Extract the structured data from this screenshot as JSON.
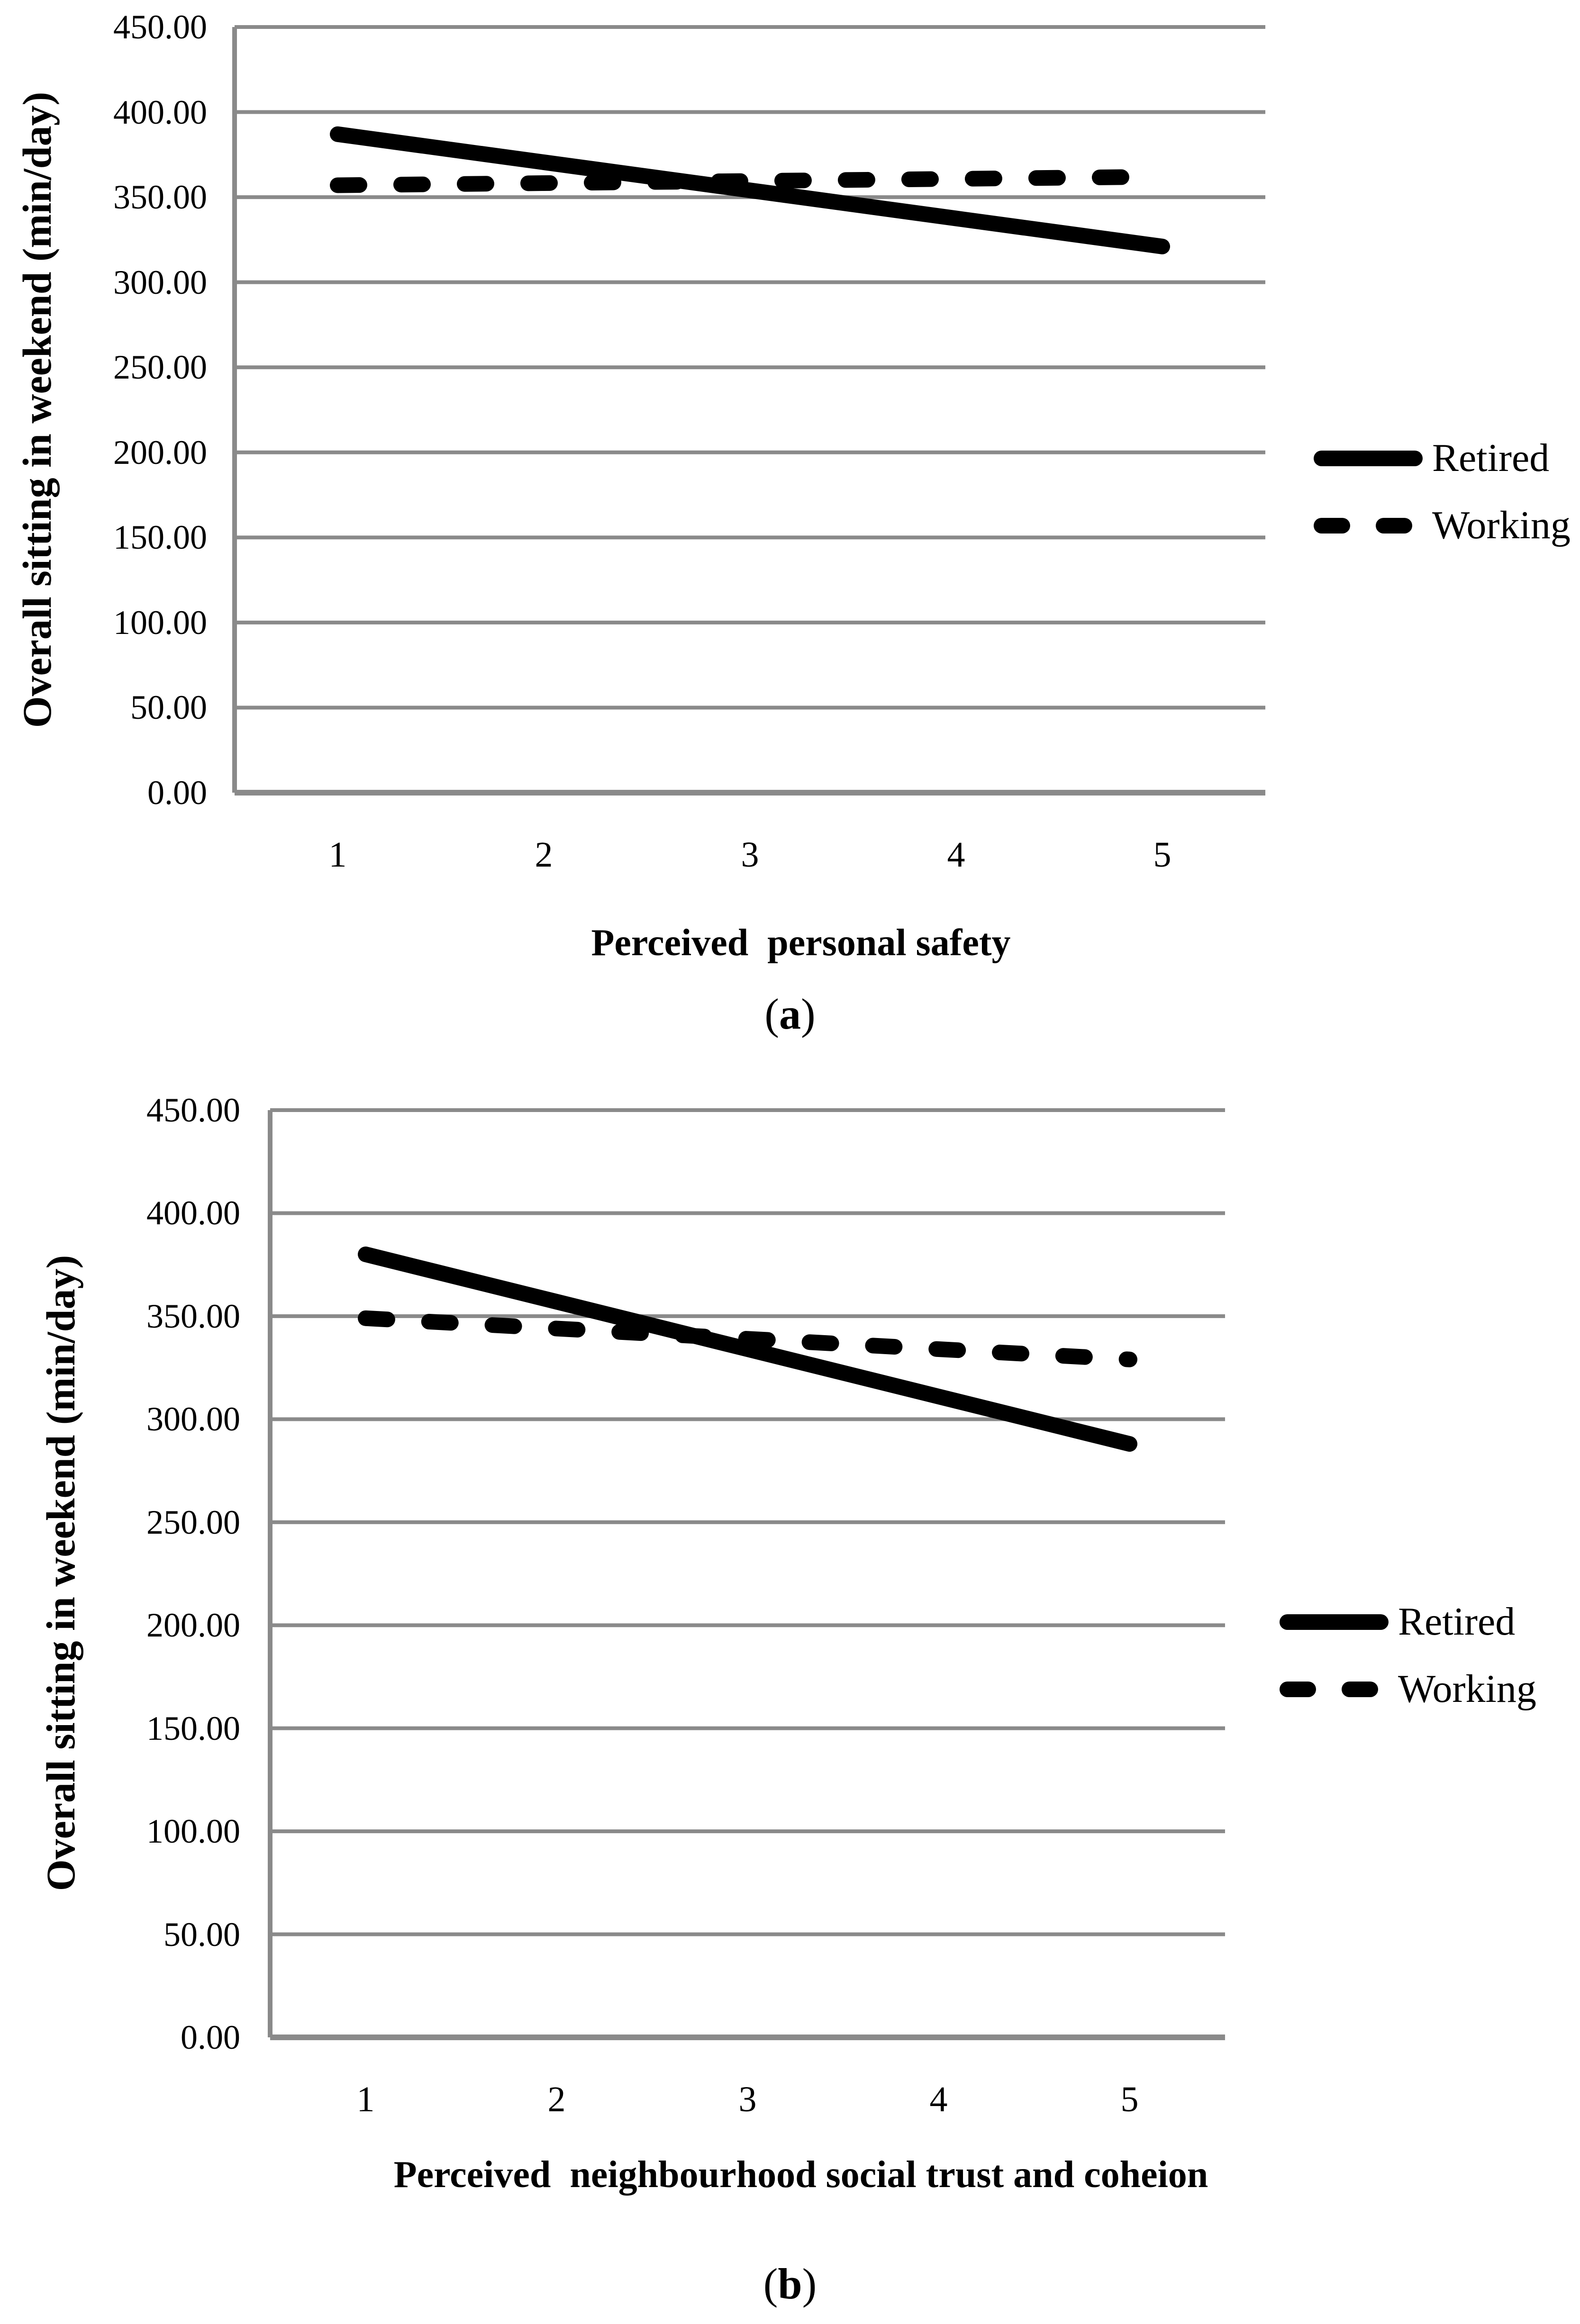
{
  "captions": {
    "a": {
      "open": "(",
      "letter": "a",
      "close": ")"
    },
    "b": {
      "open": "(",
      "letter": "b",
      "close": ")"
    }
  },
  "colors": {
    "line": "#000000",
    "grid": "#8a8a8a",
    "text": "#000000",
    "background": "#ffffff"
  },
  "chart_data": [
    {
      "type": "line",
      "panel": "a",
      "title": "",
      "xlabel": "Perceived  personal safety",
      "ylabel": "Overall sitting in weekend (min/day)",
      "categories": [
        "1",
        "2",
        "3",
        "4",
        "5"
      ],
      "x": [
        1,
        2,
        3,
        4,
        5
      ],
      "series": [
        {
          "name": "Retired",
          "style": "solid",
          "values": [
            387,
            370.5,
            354,
            337.5,
            321
          ]
        },
        {
          "name": "Working",
          "style": "dashed",
          "values": [
            357,
            358.25,
            359.5,
            360.75,
            362
          ]
        }
      ],
      "ylim": [
        0,
        450
      ],
      "ytick_step": 50,
      "ytick_labels": [
        "450.00",
        "400.00",
        "350.00",
        "300.00",
        "250.00",
        "200.00",
        "150.00",
        "100.00",
        "50.00",
        "0.00"
      ],
      "grid": "horizontal-only",
      "legend_position": "right"
    },
    {
      "type": "line",
      "panel": "b",
      "title": "",
      "xlabel": "Perceived  neighbourhood social trust and coheion",
      "ylabel": "Overall sitting in weekend (min/day)",
      "categories": [
        "1",
        "2",
        "3",
        "4",
        "5"
      ],
      "x": [
        1,
        2,
        3,
        4,
        5
      ],
      "series": [
        {
          "name": "Retired",
          "style": "solid",
          "values": [
            380,
            357,
            334,
            311,
            288
          ]
        },
        {
          "name": "Working",
          "style": "dashed",
          "values": [
            349,
            344,
            339,
            334,
            329
          ]
        }
      ],
      "ylim": [
        0,
        450
      ],
      "ytick_step": 50,
      "ytick_labels": [
        "450.00",
        "400.00",
        "350.00",
        "300.00",
        "250.00",
        "200.00",
        "150.00",
        "100.00",
        "50.00",
        "0.00"
      ],
      "grid": "horizontal-only",
      "legend_position": "right"
    }
  ]
}
